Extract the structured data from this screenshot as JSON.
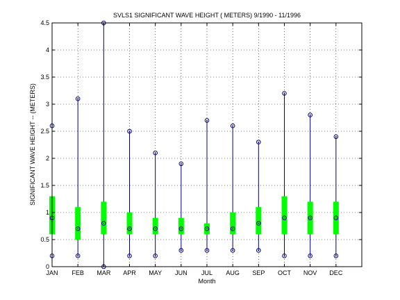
{
  "chart_data": {
    "type": "box",
    "title": "SVLS1  SIGNIFICANT WAVE HEIGHT ( METERS) 9/1990 - 11/1996",
    "xlabel": "Month",
    "ylabel": "SIGNIFICANT WAVE HEIGHT -- (METERS)",
    "ylim": [
      0,
      4.5
    ],
    "yticks": [
      0,
      0.5,
      1,
      1.5,
      2,
      2.5,
      3,
      3.5,
      4,
      4.5
    ],
    "ytick_labels": [
      "0",
      "0.5",
      "1",
      "1.5",
      "2",
      "2.5",
      "3",
      "3.5",
      "4",
      "4.5"
    ],
    "grid": true,
    "categories": [
      "JAN",
      "FEB",
      "MAR",
      "APR",
      "MAY",
      "JUN",
      "JUL",
      "AUG",
      "SEP",
      "OCT",
      "NOV",
      "DEC"
    ],
    "min": [
      0.2,
      0.2,
      0.0,
      0.2,
      0.2,
      0.3,
      0.3,
      0.3,
      0.3,
      0.2,
      0.2,
      0.2
    ],
    "max": [
      2.6,
      3.1,
      4.5,
      2.5,
      2.1,
      1.9,
      2.7,
      2.6,
      2.3,
      3.2,
      2.8,
      2.4
    ],
    "median": [
      0.9,
      0.7,
      0.8,
      0.7,
      0.7,
      0.7,
      0.7,
      0.7,
      0.8,
      0.9,
      0.9,
      0.9
    ],
    "q1": [
      0.6,
      0.5,
      0.6,
      0.6,
      0.6,
      0.6,
      0.6,
      0.6,
      0.6,
      0.6,
      0.6,
      0.6
    ],
    "q3": [
      1.3,
      1.1,
      1.2,
      1.0,
      0.9,
      0.9,
      0.8,
      1.0,
      1.1,
      1.3,
      1.2,
      1.2
    ],
    "colors": {
      "whisker": "#00007f",
      "box": "#00ff00",
      "marker": "#00007f",
      "grid": "#000000"
    }
  }
}
